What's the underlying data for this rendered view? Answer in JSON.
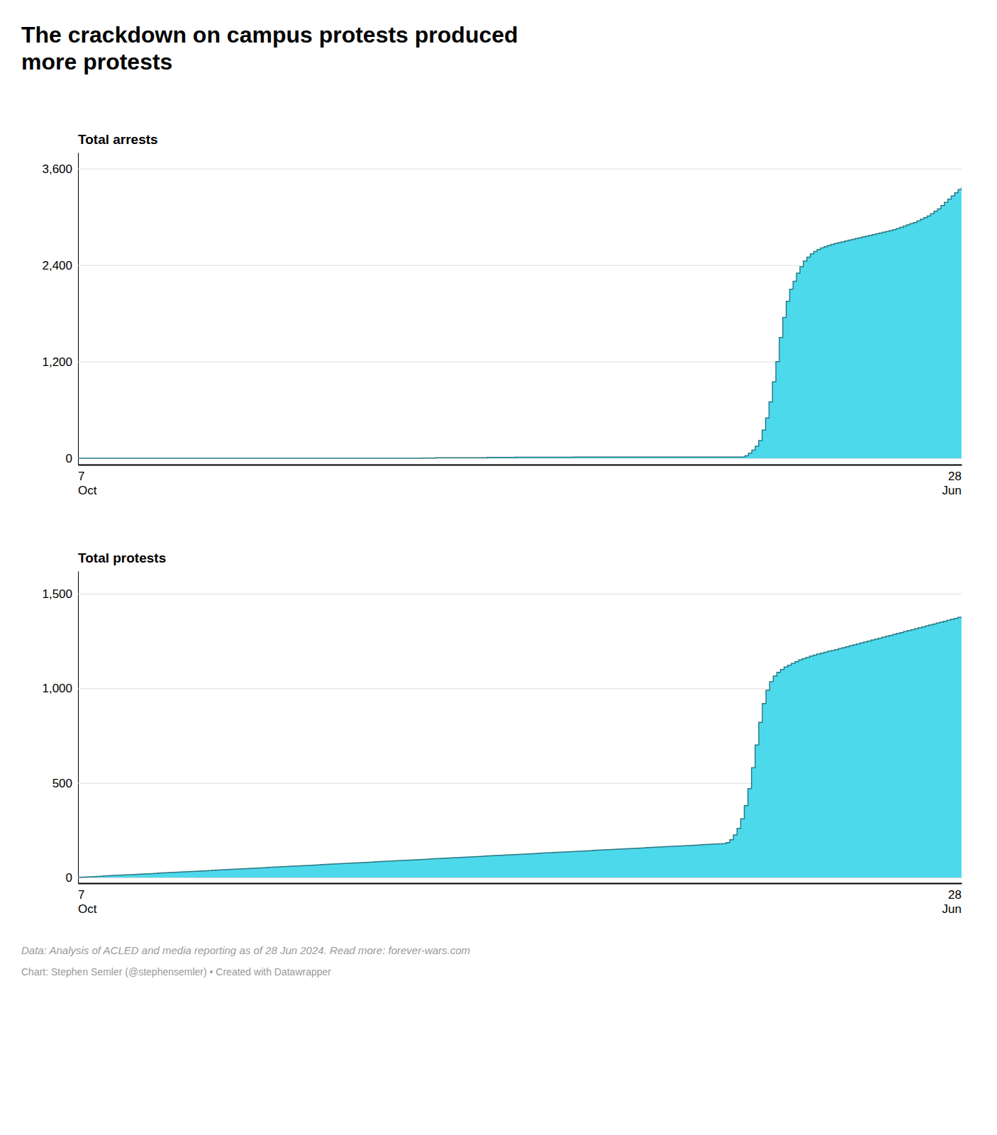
{
  "chart_data": [
    {
      "type": "area",
      "title": "The crackdown on campus protests produced\nmore protests",
      "ylabel": "Total arrests",
      "line_style": "step",
      "color": "#4DD9EC",
      "grid": true,
      "ylim": [
        -80,
        3800
      ],
      "yticks": [
        0,
        {
          "value": 1200,
          "label": "1,200"
        },
        {
          "value": 2400,
          "label": "2,400"
        },
        {
          "value": 3600,
          "label": "3,600"
        }
      ],
      "annotations": [
        "7\nOct",
        "28\nJun"
      ],
      "values": [
        0,
        0,
        0,
        0,
        0,
        0,
        0,
        0,
        0,
        0,
        0,
        0,
        0,
        0,
        0,
        0,
        0,
        0,
        0,
        0,
        0,
        0,
        0,
        0,
        0,
        0,
        0,
        0,
        0,
        0,
        0,
        0,
        0,
        0,
        0,
        0,
        0,
        0,
        0,
        0,
        0,
        0,
        0,
        0,
        0,
        0,
        0,
        0,
        0,
        0,
        0,
        0,
        0,
        0,
        0,
        0,
        0,
        0,
        0,
        0,
        0,
        0,
        0,
        0,
        0,
        0,
        0,
        0,
        0,
        0,
        0,
        0,
        0,
        0,
        0,
        0,
        0,
        0,
        0,
        0,
        0,
        0,
        0,
        0,
        0,
        0,
        0,
        0,
        0,
        0,
        0,
        0,
        0,
        0,
        0,
        0,
        0,
        0,
        0,
        0,
        2,
        2,
        2,
        2,
        5,
        5,
        5,
        5,
        5,
        5,
        5,
        5,
        5,
        5,
        5,
        5,
        5,
        5,
        5,
        10,
        10,
        10,
        10,
        10,
        10,
        10,
        10,
        12,
        12,
        12,
        12,
        12,
        12,
        12,
        12,
        12,
        12,
        12,
        12,
        12,
        12,
        12,
        12,
        12,
        15,
        15,
        15,
        15,
        15,
        15,
        15,
        15,
        15,
        15,
        15,
        15,
        15,
        15,
        15,
        15,
        15,
        15,
        15,
        15,
        15,
        15,
        15,
        15,
        15,
        15,
        15,
        15,
        15,
        15,
        15,
        15,
        15,
        15,
        15,
        15,
        15,
        15,
        15,
        15,
        15,
        15,
        15,
        15,
        15,
        15,
        15,
        15,
        15,
        15,
        30,
        60,
        100,
        150,
        220,
        350,
        500,
        700,
        950,
        1200,
        1500,
        1750,
        1950,
        2100,
        2200,
        2300,
        2380,
        2450,
        2500,
        2540,
        2570,
        2595,
        2615,
        2630,
        2645,
        2658,
        2670,
        2680,
        2690,
        2700,
        2710,
        2720,
        2730,
        2740,
        2750,
        2760,
        2770,
        2780,
        2790,
        2800,
        2810,
        2820,
        2830,
        2840,
        2855,
        2870,
        2885,
        2900,
        2915,
        2930,
        2950,
        2970,
        2990,
        3010,
        3040,
        3070,
        3100,
        3140,
        3180,
        3220,
        3260,
        3300,
        3340,
        3370
      ]
    },
    {
      "type": "area",
      "ylabel": "Total protests",
      "line_style": "step",
      "color": "#4DD9EC",
      "grid": true,
      "ylim": [
        -30,
        1620
      ],
      "yticks": [
        0,
        500,
        {
          "value": 1000,
          "label": "1,000"
        },
        {
          "value": 1500,
          "label": "1,500"
        }
      ],
      "annotations": [
        "7\nOct",
        "28\nJun",
        "Data: Analysis of ACLED and media reporting as of 28 Jun 2024. Read more: forever-wars.com",
        "Chart: Stephen Semler (@stephensemler) • Created with Datawrapper"
      ],
      "values": [
        1,
        2,
        3,
        4,
        5,
        6,
        7,
        8,
        9,
        10,
        11,
        12,
        13,
        14,
        15,
        16,
        17,
        18,
        19,
        20,
        21,
        22,
        23,
        24,
        25,
        26,
        27,
        28,
        29,
        30,
        31,
        32,
        33,
        34,
        35,
        36,
        37,
        38,
        39,
        40,
        41,
        42,
        43,
        44,
        45,
        46,
        47,
        48,
        49,
        50,
        51,
        52,
        53,
        54,
        55,
        56,
        57,
        58,
        59,
        60,
        61,
        62,
        63,
        64,
        65,
        66,
        67,
        68,
        69,
        70,
        71,
        72,
        73,
        74,
        75,
        76,
        77,
        78,
        79,
        80,
        81,
        82,
        83,
        84,
        85,
        86,
        87,
        88,
        89,
        90,
        91,
        92,
        93,
        94,
        95,
        96,
        97,
        98,
        99,
        100,
        101,
        102,
        103,
        104,
        105,
        106,
        107,
        108,
        109,
        110,
        111,
        112,
        113,
        114,
        115,
        116,
        117,
        118,
        119,
        120,
        121,
        122,
        123,
        124,
        125,
        126,
        127,
        128,
        129,
        130,
        131,
        132,
        133,
        134,
        135,
        136,
        137,
        138,
        139,
        140,
        141,
        142,
        143,
        144,
        145,
        146,
        147,
        148,
        149,
        150,
        151,
        152,
        153,
        154,
        155,
        156,
        157,
        158,
        159,
        160,
        161,
        162,
        163,
        164,
        165,
        166,
        167,
        168,
        169,
        170,
        171,
        172,
        173,
        174,
        175,
        176,
        177,
        178,
        179,
        185,
        200,
        225,
        260,
        310,
        380,
        470,
        580,
        700,
        820,
        920,
        990,
        1035,
        1065,
        1085,
        1100,
        1113,
        1122,
        1132,
        1141,
        1150,
        1157,
        1163,
        1170,
        1176,
        1181,
        1186,
        1191,
        1196,
        1200,
        1205,
        1210,
        1215,
        1220,
        1225,
        1230,
        1235,
        1240,
        1245,
        1250,
        1255,
        1260,
        1265,
        1270,
        1275,
        1280,
        1285,
        1290,
        1295,
        1300,
        1305,
        1310,
        1315,
        1320,
        1325,
        1330,
        1335,
        1340,
        1345,
        1350,
        1355,
        1360,
        1365,
        1370,
        1375,
        1380
      ]
    }
  ]
}
